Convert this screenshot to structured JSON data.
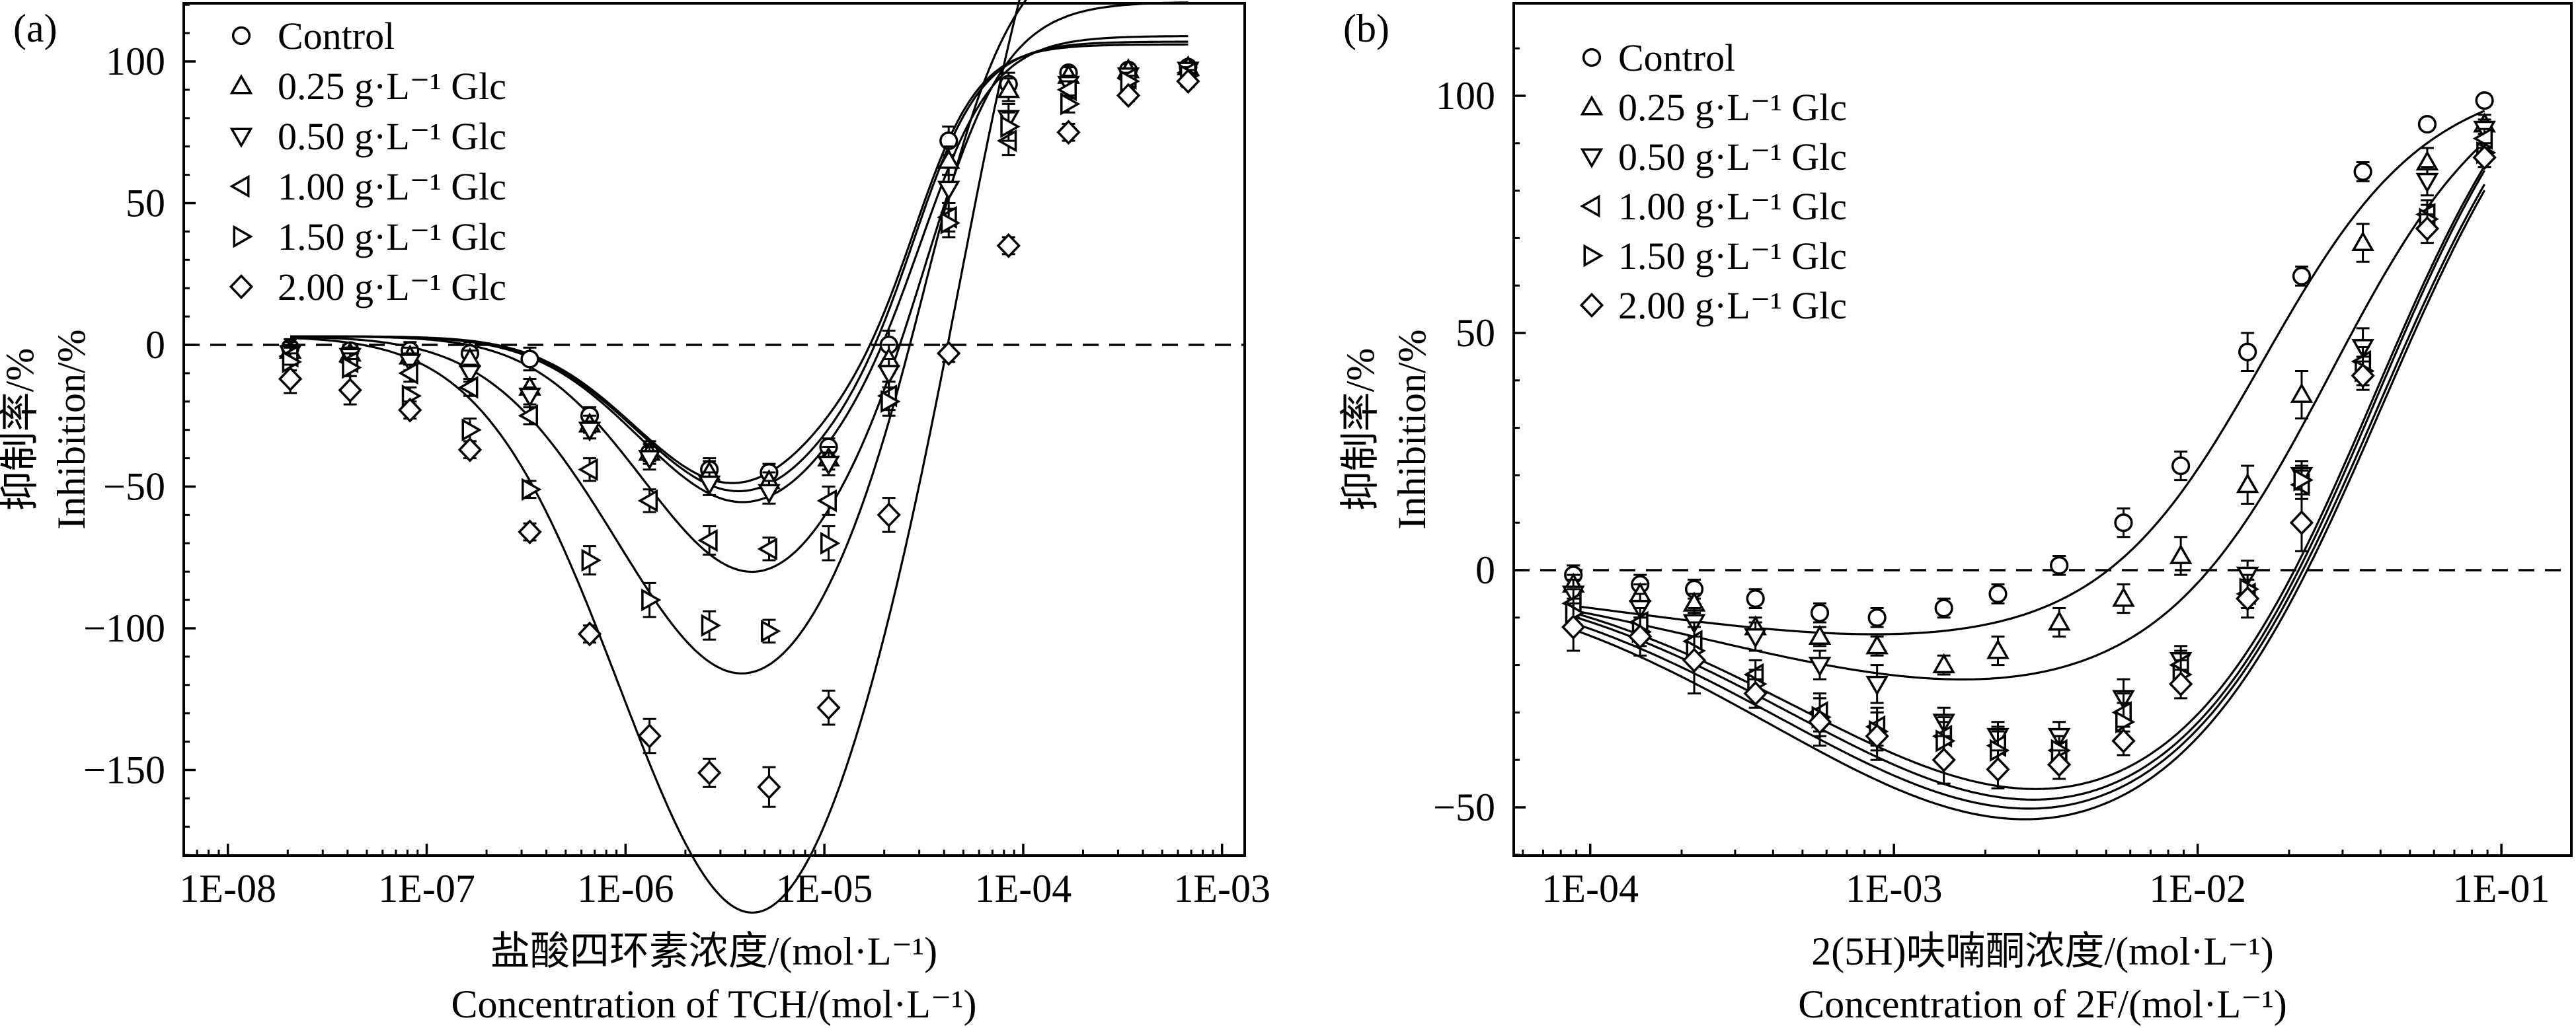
{
  "figure": {
    "panels": [
      {
        "label": "(a)",
        "ytitle_cn": "抑制率/%",
        "ytitle_en": "Inhibition/%",
        "xtitle_cn": "盐酸四环素浓度/(mol·L⁻¹)",
        "xtitle_en": "Concentration of TCH/(mol·L⁻¹)",
        "legend": [
          "Control",
          "0.25 g·L⁻¹ Glc",
          "0.50 g·L⁻¹ Glc",
          "1.00 g·L⁻¹ Glc",
          "1.50 g·L⁻¹ Glc",
          "2.00 g·L⁻¹ Glc"
        ],
        "yticks": [
          "100",
          "50",
          "0",
          "−50",
          "−100",
          "−150"
        ],
        "xticks": [
          "1E-08",
          "1E-07",
          "1E-06",
          "1E-05",
          "1E-04",
          "1E-03"
        ]
      },
      {
        "label": "(b)",
        "ytitle_cn": "抑制率/%",
        "ytitle_en": "Inhibition/%",
        "xtitle_cn": "2(5H)呋喃酮浓度/(mol·L⁻¹)",
        "xtitle_en": "Concentration of 2F/(mol·L⁻¹)",
        "legend": [
          "Control",
          "0.25 g·L⁻¹ Glc",
          "0.50 g·L⁻¹ Glc",
          "1.00 g·L⁻¹ Glc",
          "1.50 g·L⁻¹ Glc",
          "2.00 g·L⁻¹ Glc"
        ],
        "yticks": [
          "100",
          "50",
          "0",
          "−50"
        ],
        "xticks": [
          "1E-04",
          "1E-03",
          "1E-02",
          "1E-01"
        ]
      }
    ]
  },
  "chart_data": [
    {
      "type": "scatter",
      "title": "(a)",
      "xlabel": "Concentration of TCH/(mol·L⁻¹)",
      "ylabel": "Inhibition/%",
      "xscale": "log",
      "xlim": [
        6e-09,
        0.0013
      ],
      "ylim": [
        -180,
        120
      ],
      "grid": false,
      "reference_line": {
        "y": 0,
        "style": "dashed"
      },
      "legend_position": "top-left",
      "x": [
        2.06e-08,
        4.12e-08,
        8.24e-08,
        1.65e-07,
        3.3e-07,
        6.6e-07,
        1.32e-06,
        2.64e-06,
        5.27e-06,
        1.05e-05,
        2.11e-05,
        4.22e-05,
        8.44e-05,
        0.000169,
        0.000338,
        0.000675
      ],
      "series": [
        {
          "name": "Control",
          "marker": "circle",
          "values": [
            -1,
            -2,
            -2,
            -3,
            -5,
            -25,
            -38,
            -44,
            -45,
            -36,
            0,
            72,
            92,
            96,
            97,
            98
          ],
          "errors": [
            3,
            2,
            3,
            4,
            4,
            3,
            3,
            4,
            3,
            3,
            5,
            5,
            4,
            2,
            2,
            2
          ]
        },
        {
          "name": "0.25 g·L⁻¹ Glc",
          "marker": "triangle-up",
          "values": [
            -2,
            -3,
            -4,
            -5,
            -15,
            -28,
            -38,
            -45,
            -48,
            -40,
            -5,
            65,
            90,
            95,
            97,
            98
          ],
          "errors": [
            3,
            2,
            3,
            3,
            3,
            3,
            4,
            4,
            3,
            4,
            5,
            5,
            4,
            3,
            2,
            2
          ]
        },
        {
          "name": "0.50 g·L⁻¹ Glc",
          "marker": "triangle-down",
          "values": [
            -3,
            -4,
            -6,
            -10,
            -18,
            -30,
            -40,
            -49,
            -52,
            -42,
            -10,
            55,
            80,
            92,
            95,
            97
          ],
          "errors": [
            3,
            3,
            3,
            3,
            3,
            3,
            4,
            4,
            4,
            4,
            5,
            5,
            5,
            3,
            2,
            2
          ]
        },
        {
          "name": "1.00 g·L⁻¹ Glc",
          "marker": "triangle-left",
          "values": [
            -4,
            -6,
            -10,
            -15,
            -25,
            -44,
            -55,
            -69,
            -72,
            -55,
            -18,
            45,
            72,
            90,
            94,
            96
          ],
          "errors": [
            3,
            3,
            3,
            3,
            3,
            4,
            4,
            5,
            4,
            5,
            5,
            5,
            5,
            3,
            2,
            2
          ]
        },
        {
          "name": "1.50 g·L⁻¹ Glc",
          "marker": "triangle-right",
          "values": [
            -6,
            -8,
            -18,
            -30,
            -51,
            -76,
            -90,
            -99,
            -101,
            -70,
            -20,
            43,
            77,
            85,
            93,
            95
          ],
          "errors": [
            3,
            3,
            3,
            4,
            3,
            5,
            6,
            5,
            4,
            6,
            5,
            5,
            5,
            3,
            2,
            2
          ]
        },
        {
          "name": "2.00 g·L⁻¹ Glc",
          "marker": "diamond",
          "values": [
            -12,
            -16,
            -23,
            -37,
            -66,
            -102,
            -138,
            -151,
            -156,
            -128,
            -60,
            -3,
            35,
            75,
            88,
            93
          ],
          "errors": [
            5,
            5,
            3,
            3,
            3,
            3,
            6,
            5,
            7,
            6,
            6,
            3,
            3,
            3,
            2,
            2
          ]
        }
      ],
      "fit_curves": [
        {
          "A": 3,
          "B": 103,
          "x50": 3e-05,
          "n": 2.8,
          "D": -52,
          "xc": 3.5e-06,
          "s": 0.5
        },
        {
          "A": 3,
          "B": 104,
          "x50": 3e-05,
          "n": 2.7,
          "D": -55,
          "xc": 3.8e-06,
          "s": 0.52
        },
        {
          "A": 3,
          "B": 106,
          "x50": 3.3e-05,
          "n": 2.5,
          "D": -59,
          "xc": 4e-06,
          "s": 0.53
        },
        {
          "A": 3,
          "B": 118,
          "x50": 3.6e-05,
          "n": 2.3,
          "D": -84,
          "xc": 4.5e-06,
          "s": 0.56
        },
        {
          "A": 3,
          "B": 142,
          "x50": 3.6e-05,
          "n": 2.2,
          "D": -120,
          "xc": 4e-06,
          "s": 0.64
        },
        {
          "A": 3,
          "B": 212,
          "x50": 6e-05,
          "n": 1.85,
          "D": -205,
          "xc": 4.5e-06,
          "s": 0.68
        }
      ]
    },
    {
      "type": "scatter",
      "title": "(b)",
      "xlabel": "Concentration of 2F/(mol·L⁻¹)",
      "ylabel": "Inhibition/%",
      "xscale": "log",
      "xlim": [
        5.6e-05,
        0.17
      ],
      "ylim": [
        -60,
        120
      ],
      "grid": false,
      "reference_line": {
        "y": 0,
        "style": "dashed"
      },
      "legend_position": "top-left",
      "x": [
        8.8e-05,
        0.000146,
        0.00022,
        0.00035,
        0.00057,
        0.00088,
        0.00146,
        0.0022,
        0.0035,
        0.0057,
        0.0088,
        0.0146,
        0.022,
        0.035,
        0.057,
        0.088
      ],
      "series": [
        {
          "name": "Control",
          "marker": "circle",
          "values": [
            -1,
            -3,
            -4,
            -6,
            -9,
            -10,
            -8,
            -5,
            1,
            10,
            22,
            46,
            62,
            84,
            94,
            99
          ],
          "errors": [
            2,
            2,
            2,
            2,
            2,
            2,
            2,
            2,
            2,
            3,
            3,
            4,
            2,
            2,
            1,
            1
          ]
        },
        {
          "name": "0.25 g·L⁻¹ Glc",
          "marker": "triangle-up",
          "values": [
            -3,
            -5,
            -7,
            -12,
            -14,
            -16,
            -20,
            -17,
            -11,
            -6,
            3,
            18,
            37,
            69,
            86,
            94
          ],
          "errors": [
            2,
            2,
            2,
            2,
            2,
            2,
            2,
            3,
            3,
            3,
            4,
            4,
            5,
            4,
            3,
            2
          ]
        },
        {
          "name": "0.50 g·L⁻¹ Glc",
          "marker": "triangle-down",
          "values": [
            -5,
            -8,
            -11,
            -14,
            -20,
            -24,
            -32,
            -35,
            -35,
            -27,
            -19,
            -1,
            20,
            47,
            82,
            93
          ],
          "errors": [
            3,
            3,
            3,
            3,
            3,
            4,
            3,
            3,
            3,
            4,
            3,
            3,
            3,
            4,
            3,
            2
          ]
        },
        {
          "name": "1.00 g·L⁻¹ Glc",
          "marker": "triangle-left",
          "values": [
            -7,
            -11,
            -15,
            -22,
            -30,
            -33,
            -35,
            -37,
            -38,
            -30,
            -20,
            -5,
            18,
            44,
            75,
            91
          ],
          "errors": [
            3,
            3,
            4,
            3,
            4,
            4,
            4,
            4,
            3,
            4,
            3,
            3,
            3,
            3,
            3,
            2
          ]
        },
        {
          "name": "1.50 g·L⁻¹ Glc",
          "marker": "triangle-right",
          "values": [
            -9,
            -13,
            -17,
            -24,
            -31,
            -34,
            -36,
            -38,
            -38,
            -32,
            -22,
            -4,
            19,
            42,
            74,
            88
          ],
          "errors": [
            3,
            3,
            3,
            3,
            4,
            4,
            4,
            4,
            3,
            4,
            3,
            3,
            3,
            3,
            3,
            2
          ]
        },
        {
          "name": "2.00 g·L⁻¹ Glc",
          "marker": "diamond",
          "values": [
            -12,
            -14,
            -19,
            -26,
            -32,
            -35,
            -40,
            -42,
            -41,
            -36,
            -24,
            -6,
            10,
            41,
            72,
            87
          ],
          "errors": [
            5,
            4,
            7,
            3,
            5,
            5,
            5,
            4,
            3,
            3,
            3,
            4,
            6,
            3,
            3,
            2
          ]
        }
      ],
      "fit_curves": [
        {
          "A": 0,
          "B": 106,
          "x50": 0.0165,
          "n": 1.7,
          "D": -14.5,
          "xc": 0.0014,
          "s": 1.05
        },
        {
          "A": 0,
          "B": 112,
          "x50": 0.0275,
          "n": 1.65,
          "D": -24.5,
          "xc": 0.0025,
          "s": 1.0
        },
        {
          "A": 0,
          "B": 130,
          "x50": 0.039,
          "n": 1.55,
          "D": -49,
          "xc": 0.004,
          "s": 0.9
        },
        {
          "A": 0,
          "B": 130,
          "x50": 0.04,
          "n": 1.55,
          "D": -51,
          "xc": 0.0038,
          "s": 0.9
        },
        {
          "A": 0,
          "B": 130,
          "x50": 0.041,
          "n": 1.5,
          "D": -53,
          "xc": 0.0037,
          "s": 0.92
        },
        {
          "A": 0,
          "B": 130,
          "x50": 0.042,
          "n": 1.5,
          "D": -55,
          "xc": 0.0035,
          "s": 0.93
        }
      ]
    }
  ]
}
